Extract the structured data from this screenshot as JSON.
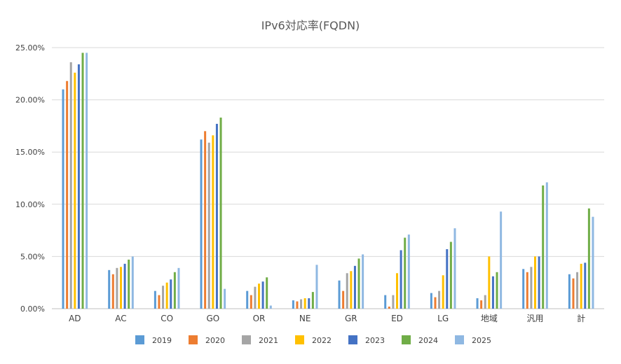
{
  "chart_data": {
    "type": "bar",
    "title": "IPv6対応率(FQDN)",
    "xlabel": "",
    "ylabel": "",
    "categories": [
      "AD",
      "AC",
      "CO",
      "GO",
      "OR",
      "NE",
      "GR",
      "ED",
      "LG",
      "地域",
      "汎用",
      "計"
    ],
    "ylim": [
      0,
      25
    ],
    "yticks": [
      0,
      5,
      10,
      15,
      20,
      25
    ],
    "ytick_labels": [
      "0.00%",
      "5.00%",
      "10.00%",
      "15.00%",
      "20.00%",
      "25.00%"
    ],
    "grid": true,
    "legend_position": "bottom",
    "series": [
      {
        "name": "2019",
        "color": "#5b9bd5",
        "values": [
          21.0,
          3.7,
          1.7,
          16.2,
          1.7,
          0.8,
          2.7,
          1.3,
          1.5,
          1.0,
          3.8,
          3.3
        ]
      },
      {
        "name": "2020",
        "color": "#ed7d31",
        "values": [
          21.8,
          3.3,
          1.3,
          17.0,
          1.3,
          0.7,
          1.7,
          0.2,
          1.1,
          0.8,
          3.5,
          2.9
        ]
      },
      {
        "name": "2021",
        "color": "#a5a5a5",
        "values": [
          23.6,
          3.9,
          2.2,
          15.9,
          2.1,
          0.9,
          3.4,
          1.3,
          1.7,
          1.3,
          4.0,
          3.5
        ]
      },
      {
        "name": "2022",
        "color": "#ffc000",
        "values": [
          22.6,
          4.0,
          2.5,
          16.6,
          2.4,
          1.0,
          3.6,
          3.4,
          3.2,
          5.0,
          5.0,
          4.3
        ]
      },
      {
        "name": "2023",
        "color": "#4472c4",
        "values": [
          23.4,
          4.3,
          2.8,
          17.7,
          2.6,
          1.0,
          4.1,
          5.6,
          5.7,
          3.1,
          5.0,
          4.4
        ]
      },
      {
        "name": "2024",
        "color": "#70ad47",
        "values": [
          24.5,
          4.7,
          3.5,
          18.3,
          3.0,
          1.6,
          4.8,
          6.8,
          6.4,
          3.5,
          11.8,
          9.6
        ]
      },
      {
        "name": "2025",
        "color": "#8fb8e2",
        "values": [
          24.5,
          5.0,
          3.9,
          1.9,
          0.3,
          4.2,
          5.2,
          7.1,
          7.7,
          9.3,
          12.1,
          8.8
        ]
      }
    ]
  }
}
